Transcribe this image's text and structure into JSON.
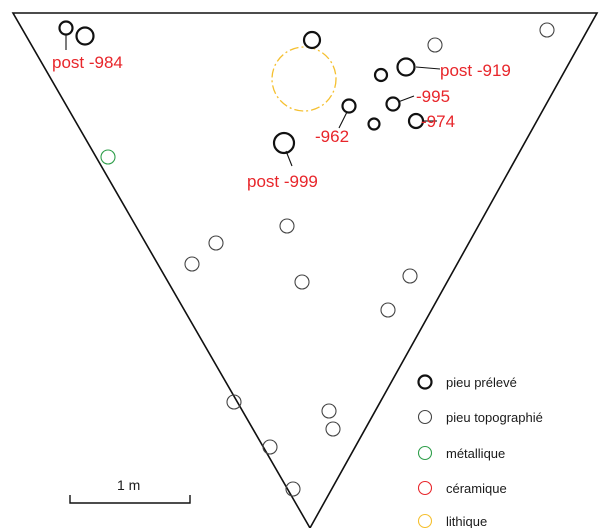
{
  "labels": {
    "post_984": "post -984",
    "post_919": "post -919",
    "n995": "-995",
    "n962": "-962",
    "n974": "-974",
    "post_999": "post -999"
  },
  "scale": {
    "label": "1 m"
  },
  "legend": {
    "items": [
      {
        "key": "pieu-preleve",
        "label": "pieu prélevé",
        "color": "#111111"
      },
      {
        "key": "pieu-topographie",
        "label": "pieu topographié",
        "color": "#444444"
      },
      {
        "key": "metallique",
        "label": "métallique",
        "color": "#2e9e4a"
      },
      {
        "key": "ceramique",
        "label": "céramique",
        "color": "#e8262b"
      },
      {
        "key": "lithique",
        "label": "lithique",
        "color": "#f5c030"
      }
    ]
  },
  "colors": {
    "outline": "#111111",
    "label_red": "#e8262b",
    "metallique": "#2e9e4a",
    "lithique": "#f5c030"
  }
}
